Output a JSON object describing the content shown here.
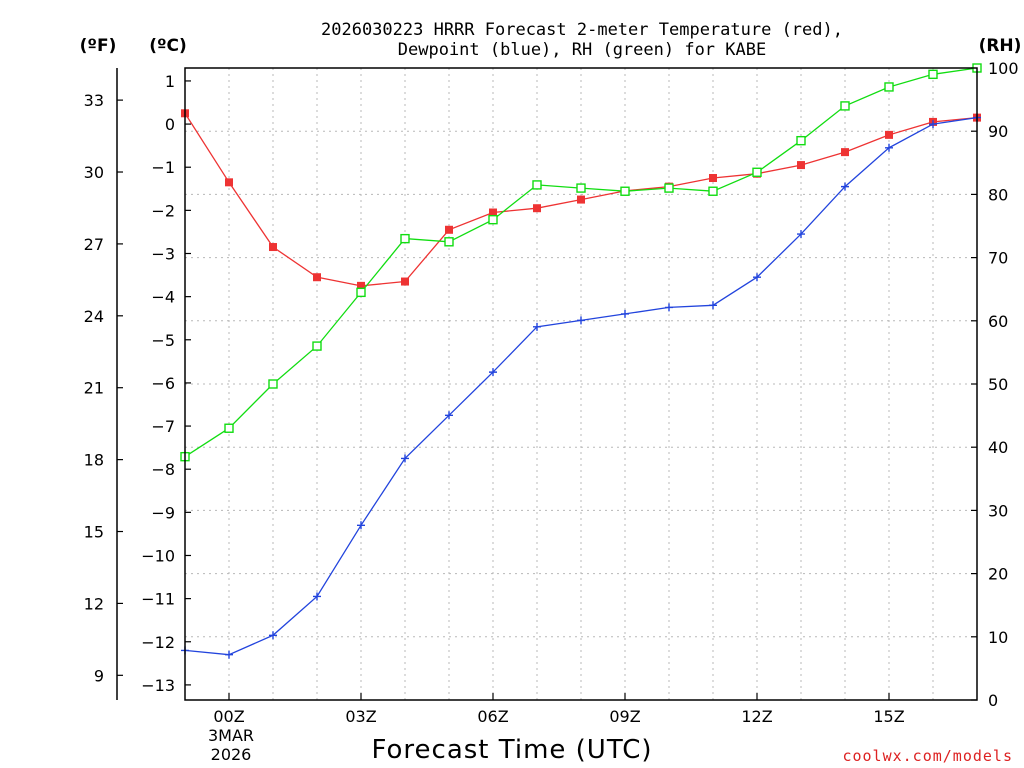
{
  "chart_data": {
    "type": "line",
    "title_line1": "2026030223 HRRR Forecast 2-meter Temperature (red),",
    "title_line2": "Dewpoint (blue), RH (green) for KABE",
    "unit_left_f": "(ºF)",
    "unit_left_c": "(ºC)",
    "unit_right": "(RH)",
    "xlabel": "Forecast Time (UTC)",
    "credit": "coolwx.com/models",
    "date_line1": "3MAR",
    "date_line2": "2026",
    "x_hours": [
      -1,
      0,
      1,
      2,
      3,
      4,
      5,
      6,
      7,
      8,
      9,
      10,
      11,
      12,
      13,
      14,
      15,
      16,
      17
    ],
    "x_range": [
      -1,
      17
    ],
    "x_ticks": [
      {
        "hour": 0,
        "label": "00Z"
      },
      {
        "hour": 3,
        "label": "03Z"
      },
      {
        "hour": 6,
        "label": "06Z"
      },
      {
        "hour": 9,
        "label": "09Z"
      },
      {
        "hour": 12,
        "label": "12Z"
      },
      {
        "hour": 15,
        "label": "15Z"
      }
    ],
    "celsius_axis": {
      "range": [
        -13.35,
        1.3
      ],
      "ticks": [
        "1",
        "0",
        "−1",
        "−2",
        "−3",
        "−4",
        "−5",
        "−6",
        "−7",
        "−8",
        "−9",
        "−10",
        "−11",
        "−12",
        "−13"
      ],
      "tick_values": [
        1,
        0,
        -1,
        -2,
        -3,
        -4,
        -5,
        -6,
        -7,
        -8,
        -9,
        -10,
        -11,
        -12,
        -13
      ]
    },
    "fahrenheit_axis": {
      "ticks": [
        "33",
        "30",
        "27",
        "24",
        "21",
        "18",
        "15",
        "12",
        "9"
      ],
      "tick_values": [
        33,
        30,
        27,
        24,
        21,
        18,
        15,
        12,
        9
      ]
    },
    "rh_axis": {
      "range": [
        0,
        100
      ],
      "ticks": [
        "100",
        "90",
        "80",
        "70",
        "60",
        "50",
        "40",
        "30",
        "20",
        "10",
        "0"
      ],
      "tick_values": [
        100,
        90,
        80,
        70,
        60,
        50,
        40,
        30,
        20,
        10,
        0
      ]
    },
    "series": [
      {
        "name": "Temperature",
        "axis": "celsius",
        "color": "#ee3333",
        "marker": "filled-square",
        "values": [
          0.25,
          -1.35,
          -2.85,
          -3.55,
          -3.75,
          -3.65,
          -2.45,
          -2.05,
          -1.95,
          -1.75,
          -1.55,
          -1.45,
          -1.25,
          -1.15,
          -0.95,
          -0.65,
          -0.25,
          0.05,
          0.15
        ]
      },
      {
        "name": "Dewpoint",
        "axis": "celsius",
        "color": "#2244dd",
        "marker": "plus",
        "values": [
          -12.2,
          -12.3,
          -11.85,
          -10.95,
          -9.3,
          -7.75,
          -6.75,
          -5.75,
          -4.7,
          -4.55,
          -4.4,
          -4.25,
          -4.2,
          -3.55,
          -2.55,
          -1.45,
          -0.55,
          0.0,
          0.15
        ]
      },
      {
        "name": "RH",
        "axis": "rh",
        "color": "#11dd11",
        "marker": "open-square",
        "values": [
          38.5,
          43.0,
          50.0,
          56.0,
          64.5,
          73.0,
          72.5,
          76.0,
          81.5,
          81.0,
          80.5,
          81.0,
          80.5,
          83.5,
          88.5,
          94.0,
          97.0,
          99.0,
          100.0
        ]
      }
    ]
  }
}
